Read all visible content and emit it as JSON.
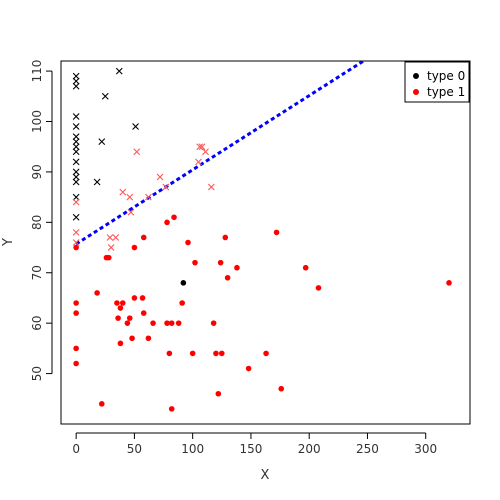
{
  "chart_data": {
    "type": "scatter",
    "title": "",
    "xlabel": "X",
    "ylabel": "Y",
    "xlim": [
      -13,
      338
    ],
    "ylim": [
      40,
      112
    ],
    "x_ticks": [
      "0",
      "50",
      "100",
      "150",
      "200",
      "250",
      "300"
    ],
    "y_ticks": [
      "50",
      "60",
      "70",
      "80",
      "90",
      "100",
      "110"
    ],
    "grid": false,
    "legend_position": "top-right",
    "series": [
      {
        "name": "type 0",
        "color": "#000000",
        "points": [
          [
            92,
            68
          ]
        ]
      },
      {
        "name": "type 1",
        "color": "#ff0000",
        "points": [
          [
            0,
            75
          ],
          [
            0,
            64
          ],
          [
            0,
            62
          ],
          [
            0,
            55
          ],
          [
            0,
            52
          ],
          [
            18,
            66
          ],
          [
            22,
            44
          ],
          [
            26,
            73
          ],
          [
            28,
            73
          ],
          [
            35,
            64
          ],
          [
            36,
            61
          ],
          [
            38,
            63
          ],
          [
            38,
            56
          ],
          [
            40,
            64
          ],
          [
            44,
            60
          ],
          [
            46,
            61
          ],
          [
            48,
            57
          ],
          [
            50,
            65
          ],
          [
            50,
            75
          ],
          [
            57,
            65
          ],
          [
            58,
            62
          ],
          [
            58,
            77
          ],
          [
            62,
            57
          ],
          [
            66,
            60
          ],
          [
            78,
            60
          ],
          [
            78,
            80
          ],
          [
            80,
            54
          ],
          [
            82,
            43
          ],
          [
            82,
            60
          ],
          [
            84,
            81
          ],
          [
            88,
            60
          ],
          [
            91,
            64
          ],
          [
            96,
            76
          ],
          [
            100,
            54
          ],
          [
            102,
            72
          ],
          [
            118,
            60
          ],
          [
            120,
            54
          ],
          [
            122,
            46
          ],
          [
            124,
            72
          ],
          [
            125,
            54
          ],
          [
            128,
            77
          ],
          [
            130,
            69
          ],
          [
            138,
            71
          ],
          [
            148,
            51
          ],
          [
            163,
            54
          ],
          [
            172,
            78
          ],
          [
            176,
            47
          ],
          [
            197,
            71
          ],
          [
            208,
            67
          ],
          [
            320,
            68
          ]
        ]
      },
      {
        "name": "",
        "marker": "x",
        "color": "#000000",
        "points": [
          [
            0,
            109
          ],
          [
            0,
            108
          ],
          [
            0,
            107
          ],
          [
            0,
            101
          ],
          [
            0,
            99
          ],
          [
            0,
            97
          ],
          [
            0,
            96
          ],
          [
            0,
            95
          ],
          [
            0,
            94
          ],
          [
            0,
            92
          ],
          [
            0,
            90
          ],
          [
            0,
            89
          ],
          [
            0,
            88
          ],
          [
            0,
            85
          ],
          [
            0,
            81
          ],
          [
            18,
            88
          ],
          [
            22,
            96
          ],
          [
            25,
            105
          ],
          [
            37,
            110
          ],
          [
            51,
            99
          ]
        ]
      },
      {
        "name": "",
        "marker": "x",
        "color": "#ff5555",
        "points": [
          [
            0,
            84
          ],
          [
            0,
            78
          ],
          [
            0,
            76
          ],
          [
            29,
            77
          ],
          [
            30,
            75
          ],
          [
            34,
            77
          ],
          [
            40,
            86
          ],
          [
            46,
            85
          ],
          [
            47,
            82
          ],
          [
            52,
            94
          ],
          [
            62,
            85
          ],
          [
            72,
            89
          ],
          [
            77,
            87
          ],
          [
            105,
            92
          ],
          [
            106,
            95
          ],
          [
            108,
            95
          ],
          [
            111,
            94
          ],
          [
            116,
            87
          ]
        ]
      }
    ],
    "line": {
      "style": "dashed",
      "color": "#0000ff",
      "x": [
        0,
        250
      ],
      "y": [
        75.7,
        112.5
      ]
    }
  }
}
